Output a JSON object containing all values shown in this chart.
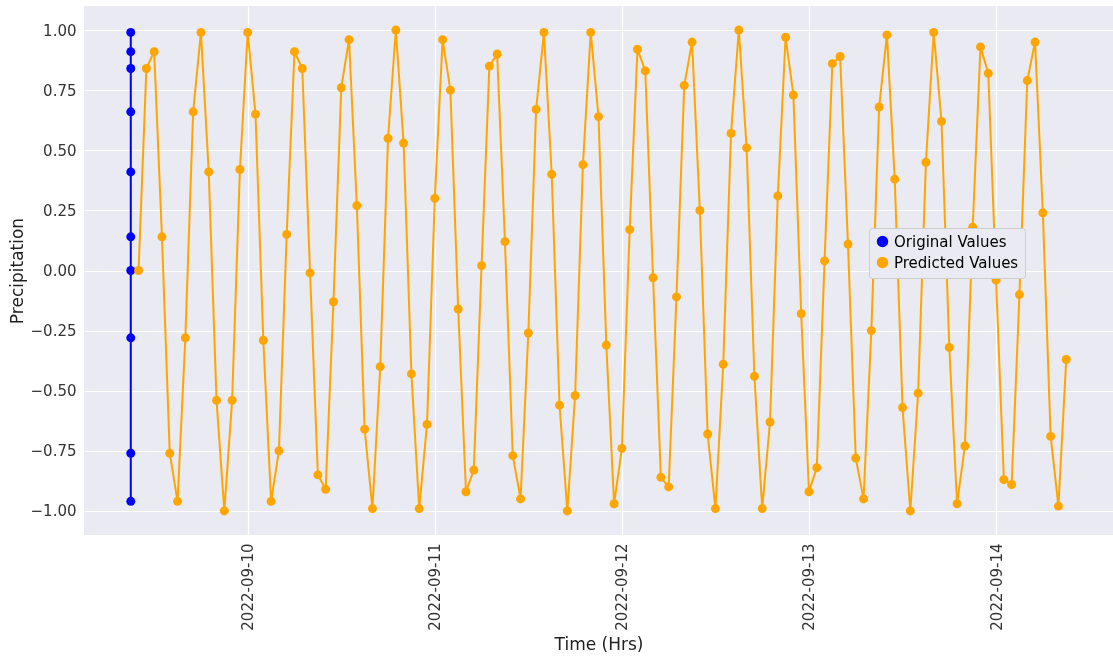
{
  "chart_data": {
    "type": "line",
    "xlabel": "Time (Hrs)",
    "ylabel": "Precipitation",
    "xlim": [
      "2022-09-09T03:00",
      "2022-09-14T15:00"
    ],
    "xticks": [
      "2022-09-10",
      "2022-09-11",
      "2022-09-12",
      "2022-09-13",
      "2022-09-14"
    ],
    "ylim": [
      -1.1,
      1.1
    ],
    "yticks": [
      {
        "value": -1,
        "label": "−1.00"
      },
      {
        "value": -0.75,
        "label": "−0.75"
      },
      {
        "value": -0.5,
        "label": "−0.50"
      },
      {
        "value": -0.25,
        "label": "−0.25"
      },
      {
        "value": 0,
        "label": "0.00"
      },
      {
        "value": 0.25,
        "label": "0.25"
      },
      {
        "value": 0.5,
        "label": "0.50"
      },
      {
        "value": 0.75,
        "label": "0.75"
      },
      {
        "value": 1,
        "label": "1.00"
      }
    ],
    "grid": true,
    "legend": "right",
    "marker": "circle",
    "line_style": "solid",
    "series": [
      {
        "name": "Original Values",
        "color": "#0000ff",
        "x": [
          "2022-09-09T09:00",
          "2022-09-09T09:00",
          "2022-09-09T09:00",
          "2022-09-09T09:00",
          "2022-09-09T09:00",
          "2022-09-09T09:00",
          "2022-09-09T09:00",
          "2022-09-09T09:00",
          "2022-09-09T09:00",
          "2022-09-09T09:00"
        ],
        "values": [
          0.0,
          0.84,
          0.91,
          0.14,
          -0.76,
          -0.96,
          -0.28,
          0.66,
          0.99,
          0.41
        ]
      },
      {
        "name": "Predicted Values",
        "color": "#ffa500",
        "x": [
          "2022-09-09T10:00",
          "2022-09-09T11:00",
          "2022-09-09T12:00",
          "2022-09-09T13:00",
          "2022-09-09T14:00",
          "2022-09-09T15:00",
          "2022-09-09T16:00",
          "2022-09-09T17:00",
          "2022-09-09T18:00",
          "2022-09-09T19:00",
          "2022-09-09T20:00",
          "2022-09-09T21:00",
          "2022-09-09T22:00",
          "2022-09-09T23:00",
          "2022-09-10T00:00",
          "2022-09-10T01:00",
          "2022-09-10T02:00",
          "2022-09-10T03:00",
          "2022-09-10T04:00",
          "2022-09-10T05:00",
          "2022-09-10T06:00",
          "2022-09-10T07:00",
          "2022-09-10T08:00",
          "2022-09-10T09:00",
          "2022-09-10T10:00",
          "2022-09-10T11:00",
          "2022-09-10T12:00",
          "2022-09-10T13:00",
          "2022-09-10T14:00",
          "2022-09-10T15:00",
          "2022-09-10T16:00",
          "2022-09-10T17:00",
          "2022-09-10T18:00",
          "2022-09-10T19:00",
          "2022-09-10T20:00",
          "2022-09-10T21:00",
          "2022-09-10T22:00",
          "2022-09-10T23:00",
          "2022-09-11T00:00",
          "2022-09-11T01:00",
          "2022-09-11T02:00",
          "2022-09-11T03:00",
          "2022-09-11T04:00",
          "2022-09-11T05:00",
          "2022-09-11T06:00",
          "2022-09-11T07:00",
          "2022-09-11T08:00",
          "2022-09-11T09:00",
          "2022-09-11T10:00",
          "2022-09-11T11:00",
          "2022-09-11T12:00",
          "2022-09-11T13:00",
          "2022-09-11T14:00",
          "2022-09-11T15:00",
          "2022-09-11T16:00",
          "2022-09-11T17:00",
          "2022-09-11T18:00",
          "2022-09-11T19:00",
          "2022-09-11T20:00",
          "2022-09-11T21:00",
          "2022-09-11T22:00",
          "2022-09-11T23:00",
          "2022-09-12T00:00",
          "2022-09-12T01:00",
          "2022-09-12T02:00",
          "2022-09-12T03:00",
          "2022-09-12T04:00",
          "2022-09-12T05:00",
          "2022-09-12T06:00",
          "2022-09-12T07:00",
          "2022-09-12T08:00",
          "2022-09-12T09:00",
          "2022-09-12T10:00",
          "2022-09-12T11:00",
          "2022-09-12T12:00",
          "2022-09-12T13:00",
          "2022-09-12T14:00",
          "2022-09-12T15:00",
          "2022-09-12T16:00",
          "2022-09-12T17:00",
          "2022-09-12T18:00",
          "2022-09-12T19:00",
          "2022-09-12T20:00",
          "2022-09-12T21:00",
          "2022-09-12T22:00",
          "2022-09-12T23:00",
          "2022-09-13T00:00",
          "2022-09-13T01:00",
          "2022-09-13T02:00",
          "2022-09-13T03:00",
          "2022-09-13T04:00",
          "2022-09-13T05:00",
          "2022-09-13T06:00",
          "2022-09-13T07:00",
          "2022-09-13T08:00",
          "2022-09-13T09:00",
          "2022-09-13T10:00",
          "2022-09-13T11:00",
          "2022-09-13T12:00",
          "2022-09-13T13:00",
          "2022-09-13T14:00",
          "2022-09-13T15:00",
          "2022-09-13T16:00",
          "2022-09-13T17:00",
          "2022-09-13T18:00",
          "2022-09-13T19:00",
          "2022-09-13T20:00",
          "2022-09-13T21:00",
          "2022-09-13T22:00",
          "2022-09-13T23:00",
          "2022-09-14T00:00",
          "2022-09-14T01:00",
          "2022-09-14T02:00",
          "2022-09-14T03:00",
          "2022-09-14T04:00",
          "2022-09-14T05:00",
          "2022-09-14T06:00",
          "2022-09-14T07:00",
          "2022-09-14T08:00",
          "2022-09-14T09:00"
        ],
        "values": [
          0.0,
          0.84,
          0.91,
          0.14,
          -0.76,
          -0.96,
          -0.28,
          0.66,
          0.99,
          0.41,
          -0.54,
          -1.0,
          -0.54,
          0.42,
          0.99,
          0.65,
          -0.29,
          -0.96,
          -0.75,
          0.15,
          0.91,
          0.84,
          -0.01,
          -0.85,
          -0.91,
          -0.13,
          0.76,
          0.96,
          0.27,
          -0.66,
          -0.99,
          -0.4,
          0.55,
          1.0,
          0.53,
          -0.43,
          -0.99,
          -0.64,
          0.3,
          0.96,
          0.75,
          -0.16,
          -0.92,
          -0.83,
          0.02,
          0.85,
          0.9,
          0.12,
          -0.77,
          -0.95,
          -0.26,
          0.67,
          0.99,
          0.4,
          -0.56,
          -1.0,
          -0.52,
          0.44,
          0.99,
          0.64,
          -0.31,
          -0.97,
          -0.74,
          0.17,
          0.92,
          0.83,
          -0.03,
          -0.86,
          -0.9,
          -0.11,
          0.77,
          0.95,
          0.25,
          -0.68,
          -0.99,
          -0.39,
          0.57,
          1.0,
          0.51,
          -0.44,
          -0.99,
          -0.63,
          0.31,
          0.97,
          0.73,
          -0.18,
          -0.92,
          -0.82,
          0.04,
          0.86,
          0.89,
          0.11,
          -0.78,
          -0.95,
          -0.25,
          0.68,
          0.98,
          0.38,
          -0.57,
          -1.0,
          -0.51,
          0.45,
          0.99,
          0.62,
          -0.32,
          -0.97,
          -0.73,
          0.18,
          0.93,
          0.82,
          -0.04,
          -0.87,
          -0.89,
          -0.1,
          0.79,
          0.95,
          0.24,
          -0.69,
          -0.98,
          -0.37
        ]
      }
    ]
  }
}
